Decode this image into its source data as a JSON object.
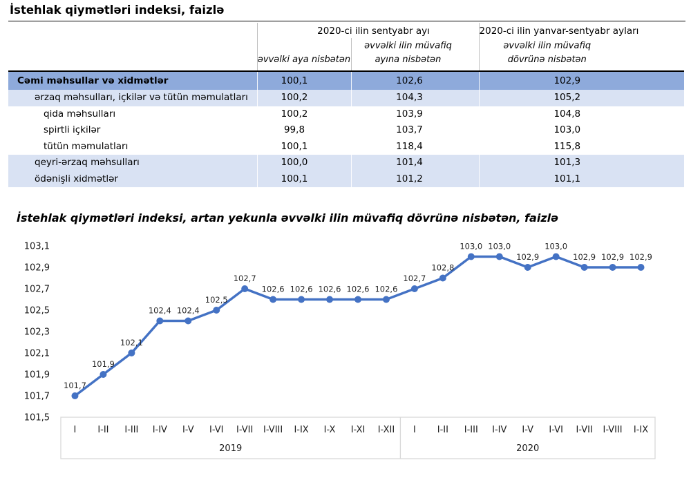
{
  "table": {
    "title": "İstehlak qiymətləri indeksi, faizlə",
    "column_groups": [
      {
        "label": "2020-ci ilin sentyabr ayı"
      },
      {
        "label": "2020-ci ilin yanvar-sentyabr ayları"
      }
    ],
    "sub_headers": [
      "əvvəlki aya nisbətən",
      "əvvəlki ilin müvafiq ayına nisbətən",
      "əvvəlki ilin müvafiq dövrünə nisbətən"
    ],
    "rows": [
      {
        "label": "Cəmi məhsullar və xidmətlər",
        "indent": 0,
        "style": "total",
        "values": [
          "100,1",
          "102,6",
          "102,9"
        ]
      },
      {
        "label": "ərzaq məhsulları, içkilər və tütün məmulatları",
        "indent": 1,
        "style": "light",
        "values": [
          "100,2",
          "104,3",
          "105,2"
        ]
      },
      {
        "label": "qida məhsulları",
        "indent": 2,
        "style": "white",
        "values": [
          "100,2",
          "103,9",
          "104,8"
        ]
      },
      {
        "label": "spirtli içkilər",
        "indent": 2,
        "style": "white",
        "values": [
          "99,8",
          "103,7",
          "103,0"
        ]
      },
      {
        "label": "tütün məmulatları",
        "indent": 2,
        "style": "white",
        "values": [
          "100,1",
          "118,4",
          "115,8"
        ]
      },
      {
        "label": "qeyri-ərzaq məhsulları",
        "indent": 1,
        "style": "light",
        "values": [
          "100,0",
          "101,4",
          "101,3"
        ]
      },
      {
        "label": "ödənişli xidmətlər",
        "indent": 1,
        "style": "light",
        "values": [
          "100,1",
          "101,2",
          "101,1"
        ]
      }
    ]
  },
  "chart_data": {
    "type": "line",
    "title": "İstehlak qiymətləri indeksi, artan yekunla əvvəlki ilin müvafiq dövrünə nisbətən, faizlə",
    "categories": [
      "I",
      "I-II",
      "I-III",
      "I-IV",
      "I-V",
      "I-VI",
      "I-VII",
      "I-VIII",
      "I-IX",
      "I-X",
      "I-XI",
      "I-XII",
      "I",
      "I-II",
      "I-III",
      "I-IV",
      "I-V",
      "I-VI",
      "I-VII",
      "I-VIII",
      "I-IX"
    ],
    "category_groups": [
      {
        "label": "2019",
        "count": 12
      },
      {
        "label": "2020",
        "count": 9
      }
    ],
    "series": [
      {
        "name": "İstehlak qiymətləri indeksi, artan yekunla",
        "values": [
          101.7,
          101.9,
          102.1,
          102.4,
          102.4,
          102.5,
          102.7,
          102.6,
          102.6,
          102.6,
          102.6,
          102.6,
          102.7,
          102.8,
          103.0,
          103.0,
          102.9,
          103.0,
          102.9,
          102.9,
          102.9
        ]
      }
    ],
    "ylim": [
      101.5,
      103.1
    ],
    "ytick_step": 0.2,
    "yticks": [
      "101,5",
      "101,7",
      "101,9",
      "102,1",
      "102,3",
      "102,5",
      "102,7",
      "102,9",
      "103,1"
    ],
    "decimal_separator": ",",
    "grid": false,
    "legend": "none",
    "data_labels": true
  },
  "colors": {
    "line": "#4472C4",
    "marker": "#4472C4",
    "row_total_bg": "#8EAADB",
    "row_subtotal_bg": "#D9E2F3",
    "axis_box_border": "#D8D8D8",
    "table_rule": "#000000"
  }
}
